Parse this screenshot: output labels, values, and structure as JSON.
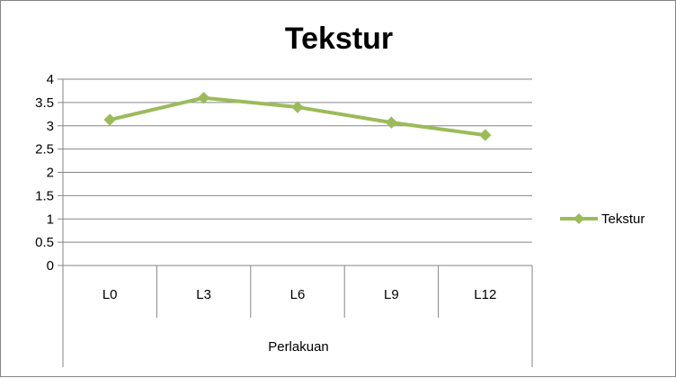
{
  "chart_data": {
    "type": "line",
    "title": "Tekstur",
    "xlabel": "Perlakuan",
    "ylabel": "",
    "categories": [
      "L0",
      "L3",
      "L6",
      "L9",
      "L12"
    ],
    "series": [
      {
        "name": "Tekstur",
        "values": [
          3.13,
          3.6,
          3.4,
          3.07,
          2.8
        ],
        "color": "#9BBB59",
        "marker": "diamond"
      }
    ],
    "ylim": [
      0,
      4
    ],
    "yticks": [
      "0",
      "0.5",
      "1",
      "1.5",
      "2",
      "2.5",
      "3",
      "3.5",
      "4"
    ],
    "grid": true,
    "legend_position": "right"
  }
}
